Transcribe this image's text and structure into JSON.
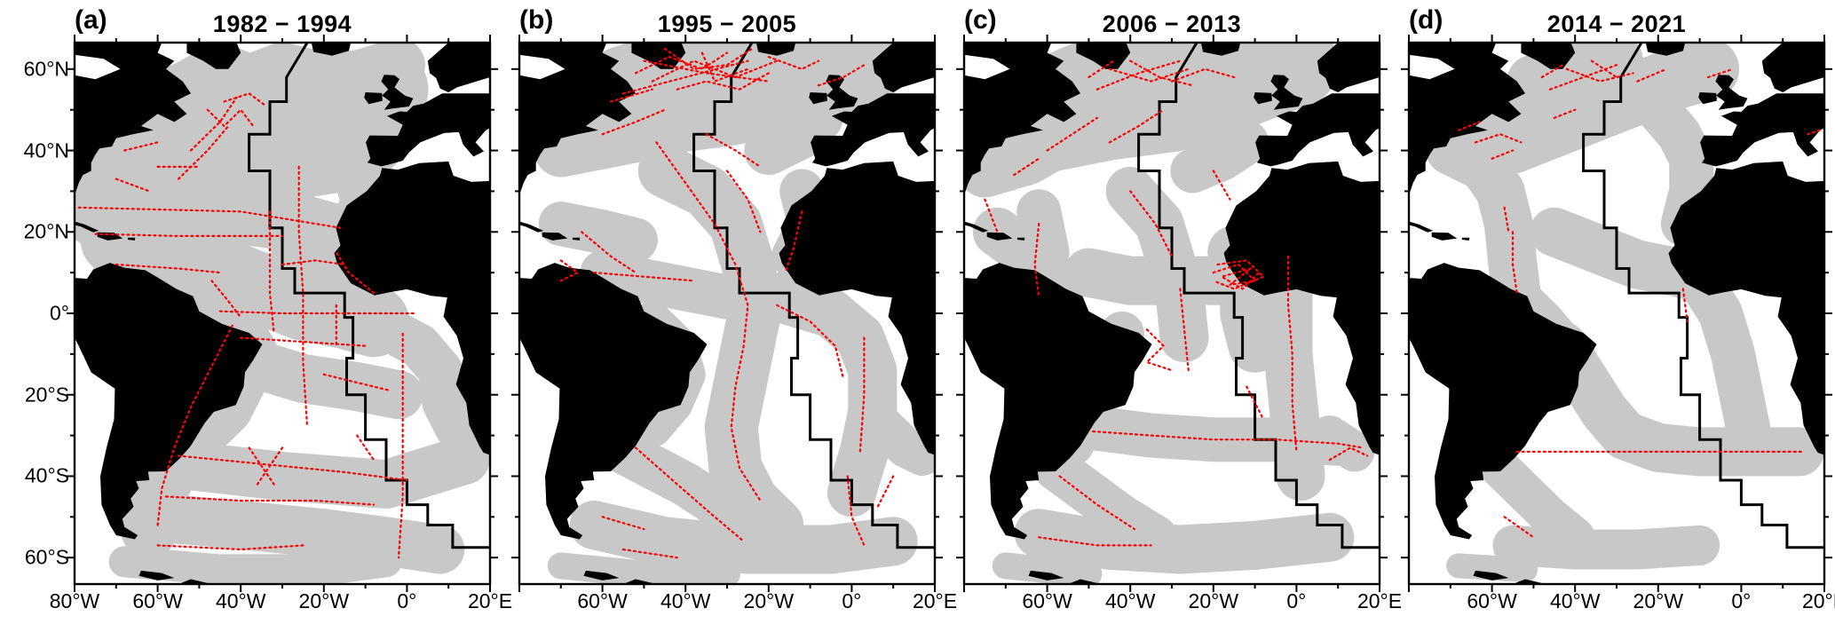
{
  "figure": {
    "colors": {
      "land": "#000000",
      "coverage": "#c8c8c8",
      "track": "#ff0000",
      "ridge_line": "#000000",
      "frame": "#000000",
      "background": "#ffffff"
    },
    "y_axis": {
      "ticks": [
        {
          "label": "60°N",
          "lat": 60
        },
        {
          "label": "40°N",
          "lat": 40
        },
        {
          "label": "20°N",
          "lat": 20
        },
        {
          "label": "0°",
          "lat": 0
        },
        {
          "label": "20°S",
          "lat": -20
        },
        {
          "label": "40°S",
          "lat": -40
        },
        {
          "label": "60°S",
          "lat": -60
        }
      ]
    },
    "panels": [
      {
        "id": "a",
        "label": "(a)",
        "title": "1982 − 1994",
        "x_ticks": [
          {
            "label": "80°W",
            "lon": -80
          },
          {
            "label": "60°W",
            "lon": -60
          },
          {
            "label": "40°W",
            "lon": -40
          },
          {
            "label": "20°W",
            "lon": -20
          },
          {
            "label": "0°",
            "lon": 0
          },
          {
            "label": "20°E",
            "lon": 20
          }
        ]
      },
      {
        "id": "b",
        "label": "(b)",
        "title": "1995 − 2005",
        "x_ticks": [
          {
            "label": "60°W",
            "lon": -60
          },
          {
            "label": "40°W",
            "lon": -40
          },
          {
            "label": "20°W",
            "lon": -20
          },
          {
            "label": "0°",
            "lon": 0
          },
          {
            "label": "20°E",
            "lon": 20
          }
        ]
      },
      {
        "id": "c",
        "label": "(c)",
        "title": "2006 − 2013",
        "x_ticks": [
          {
            "label": "60°W",
            "lon": -60
          },
          {
            "label": "40°W",
            "lon": -40
          },
          {
            "label": "20°W",
            "lon": -20
          },
          {
            "label": "0°",
            "lon": 0
          },
          {
            "label": "20°E",
            "lon": 20
          }
        ]
      },
      {
        "id": "d",
        "label": "(d)",
        "title": "2014 − 2021",
        "x_ticks": [
          {
            "label": "60°W",
            "lon": -60
          },
          {
            "label": "40°W",
            "lon": -40
          },
          {
            "label": "20°W",
            "lon": -20
          },
          {
            "label": "0°",
            "lon": 0
          },
          {
            "label": "20°E",
            "lon": 20
          }
        ]
      }
    ]
  }
}
